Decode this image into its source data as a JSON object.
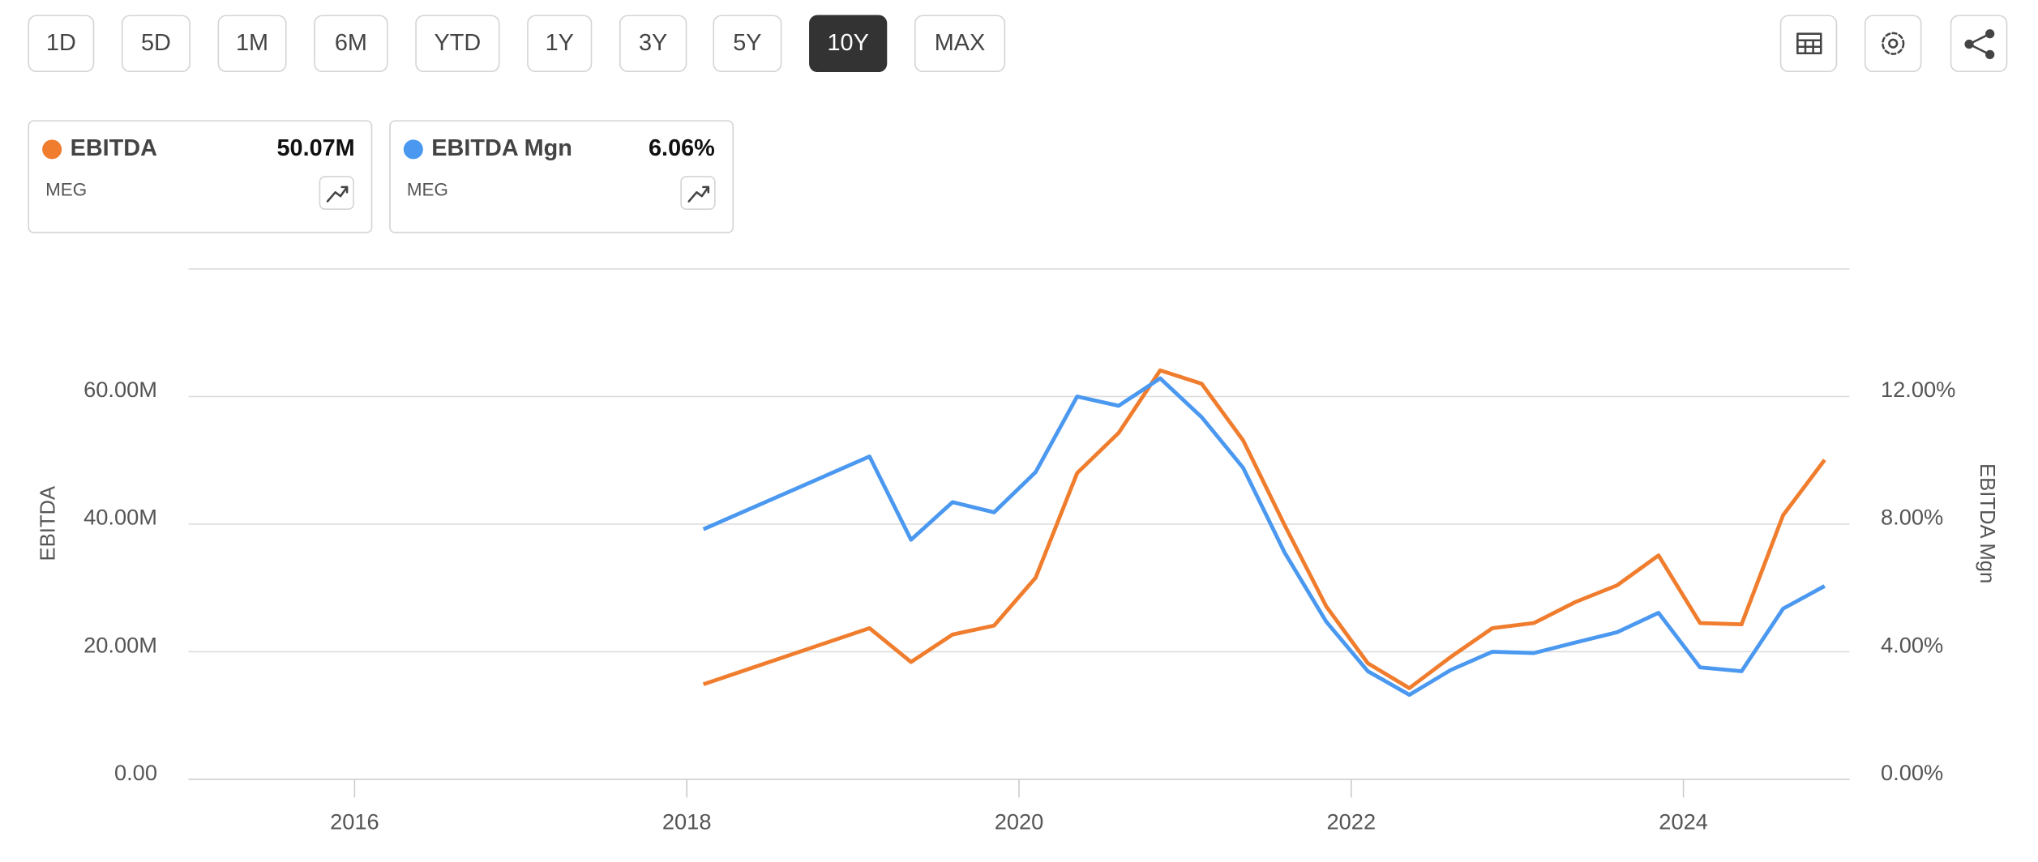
{
  "toolbar": {
    "ranges": [
      {
        "label": "1D"
      },
      {
        "label": "5D"
      },
      {
        "label": "1M"
      },
      {
        "label": "6M"
      },
      {
        "label": "YTD"
      },
      {
        "label": "1Y"
      },
      {
        "label": "3Y"
      },
      {
        "label": "5Y"
      },
      {
        "label": "10Y",
        "selected": true
      },
      {
        "label": "MAX"
      }
    ]
  },
  "legend_cards": [
    {
      "value": "50.07M",
      "ticker": "MEG"
    },
    {
      "value": "6.06%",
      "ticker": "MEG"
    }
  ],
  "chart_data": {
    "type": "line",
    "ylabel": "EBITDA",
    "y2label": "EBITDA Mgn",
    "x": [
      2018.1,
      2019.1,
      2019.35,
      2019.6,
      2019.85,
      2020.1,
      2020.35,
      2020.6,
      2020.85,
      2021.1,
      2021.35,
      2021.6,
      2021.85,
      2022.1,
      2022.35,
      2022.6,
      2022.85,
      2023.1,
      2023.35,
      2023.6,
      2023.85,
      2024.1,
      2024.35,
      2024.6,
      2024.85
    ],
    "series": [
      {
        "name": "EBITDA",
        "color": "#f07d2e",
        "values": [
          14.9,
          23.7,
          18.4,
          22.7,
          24.1,
          31.6,
          48.0,
          54.3,
          64.1,
          62.0,
          53.1,
          39.8,
          27.1,
          18.2,
          14.3,
          19.2,
          23.7,
          24.5,
          27.8,
          30.4,
          35.1,
          24.5,
          24.3,
          41.4,
          50.07
        ]
      },
      {
        "name": "EBITDA Mgn",
        "color": "#4a98f0",
        "axis": "y2",
        "values": [
          7.84,
          10.12,
          7.51,
          8.69,
          8.37,
          9.63,
          12.0,
          11.71,
          12.57,
          11.35,
          9.76,
          7.1,
          4.94,
          3.39,
          2.65,
          3.43,
          4.0,
          3.96,
          4.29,
          4.61,
          5.22,
          3.51,
          3.39,
          5.35,
          6.06
        ]
      }
    ],
    "xlim": [
      2015,
      2025
    ],
    "xticks": [
      2016,
      2018,
      2020,
      2022,
      2024
    ],
    "ylim": [
      0,
      80
    ],
    "yticks": [
      {
        "value": 0,
        "label": "0.00"
      },
      {
        "value": 20,
        "label": "20.00M"
      },
      {
        "value": 40,
        "label": "40.00M"
      },
      {
        "value": 60,
        "label": "60.00M"
      }
    ],
    "y2lim": [
      0,
      16
    ],
    "y2ticks": [
      {
        "value": 0,
        "label": "0.00%"
      },
      {
        "value": 4,
        "label": "4.00%"
      },
      {
        "value": 8,
        "label": "8.00%"
      },
      {
        "value": 12,
        "label": "12.00%"
      }
    ],
    "grid": true
  }
}
